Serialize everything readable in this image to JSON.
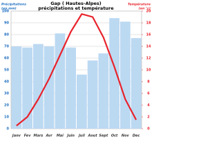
{
  "chart_data": {
    "type": "bar-line",
    "title": "Gap ( Hautes-Alpes)",
    "subtitle": "précipitations et température",
    "y_label": [
      "Précipitations",
      "(en mm)"
    ],
    "y2_label": [
      "Température",
      "(en °c)"
    ],
    "categories": [
      "Janv",
      "Fev",
      "Mars",
      "Avr",
      "Mai",
      "Juin",
      "Juil",
      "Aout",
      "Sept",
      "Oct",
      "Nov",
      "Dec"
    ],
    "series": [
      {
        "name": "précipitations",
        "type": "bar",
        "color": "#bcd9f2",
        "values": [
          70,
          69,
          72,
          70,
          81,
          69,
          46,
          58,
          64,
          94,
          91,
          77
        ]
      },
      {
        "name": "température",
        "type": "line",
        "axis": "y2",
        "color": "#e8222b",
        "values": [
          0.5,
          2,
          5,
          8.5,
          12.5,
          16.5,
          19.5,
          19,
          15.5,
          10.5,
          5,
          1.5
        ]
      }
    ],
    "ylim": [
      0,
      100
    ],
    "yticks": [
      0,
      10,
      20,
      30,
      40,
      50,
      60,
      70,
      80,
      90,
      100
    ],
    "y2lim": [
      0,
      20
    ],
    "y2ticks": [
      0,
      2,
      4,
      6,
      8,
      10,
      12,
      14,
      16,
      18,
      20
    ],
    "grid": true
  }
}
